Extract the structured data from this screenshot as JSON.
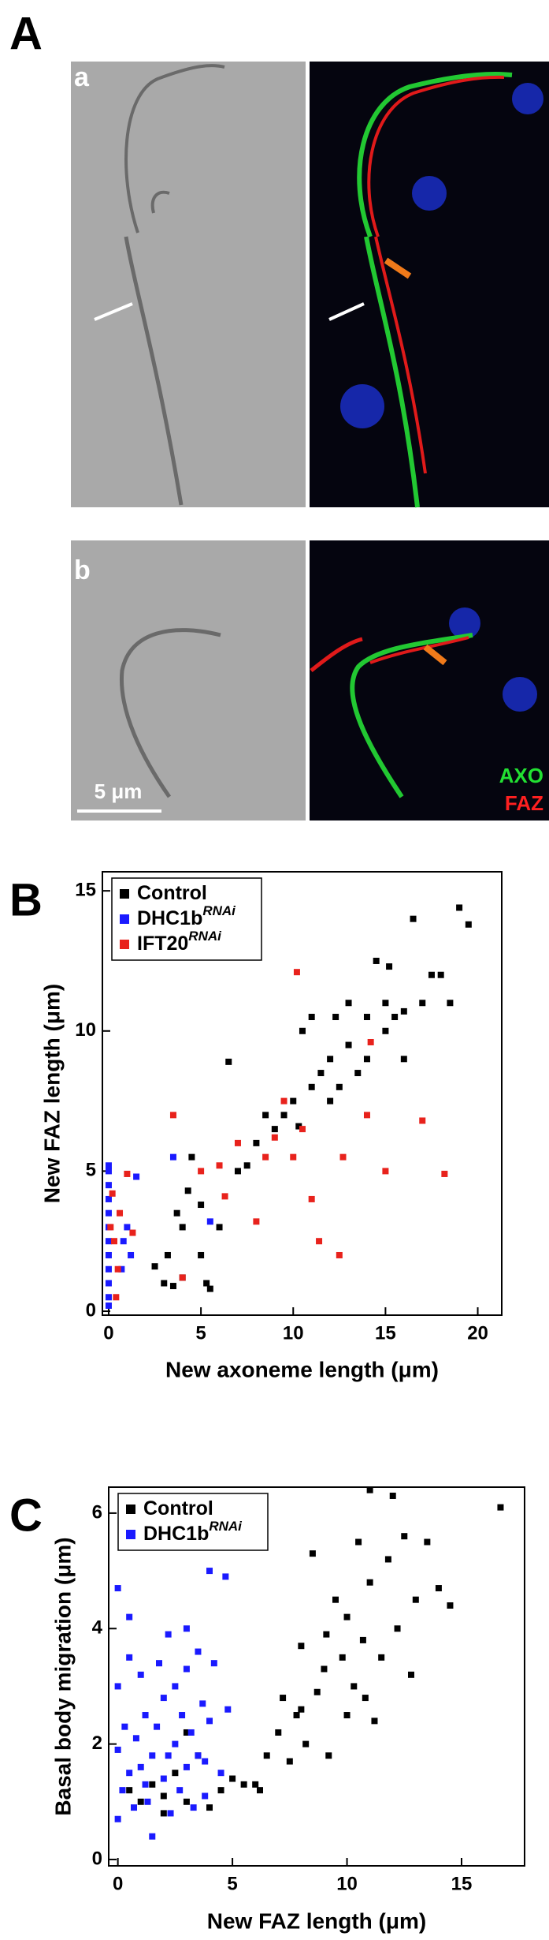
{
  "panel_labels": [
    "A",
    "B",
    "C"
  ],
  "micrographs": {
    "a": "a",
    "b": "b",
    "scale_bar": "5 μm",
    "channels": [
      "AXO",
      "FAZ"
    ]
  },
  "chart_data": [
    {
      "type": "scatter",
      "xlabel": "New axoneme length (μm)",
      "ylabel": "New FAZ length (μm)",
      "xlim": [
        -0.34,
        21.3
      ],
      "ylim": [
        -0.14,
        15.68
      ],
      "xticks": [
        0,
        5,
        10,
        15,
        20
      ],
      "yticks": [
        0,
        5,
        10,
        15
      ],
      "legend": "upper left",
      "series": [
        {
          "name": "Control",
          "color": "#000000",
          "x": [
            3,
            3.2,
            3.5,
            4,
            4,
            4.3,
            4.5,
            5,
            5,
            5.3,
            5.5,
            6,
            6.5,
            7,
            7.5,
            8,
            8.5,
            9,
            9.5,
            10,
            10.3,
            11,
            11,
            11.5,
            12,
            12,
            12.5,
            13,
            13,
            13.5,
            14,
            14,
            14.5,
            15,
            15,
            15.5,
            16,
            16,
            16.5,
            17,
            17.5,
            18,
            18.5,
            19,
            19.5,
            2.5,
            3.7,
            10.5,
            12.3,
            15.2
          ],
          "values": [
            1,
            2,
            0.9,
            1.2,
            3,
            4.3,
            5.5,
            3.8,
            2,
            1,
            0.8,
            3,
            8.9,
            5,
            5.2,
            6,
            7,
            6.5,
            7,
            7.5,
            6.6,
            10.5,
            8,
            8.5,
            9,
            7.5,
            8,
            9.5,
            11,
            8.5,
            10.5,
            9,
            12.5,
            11,
            10,
            10.5,
            10.7,
            9,
            14,
            11,
            12,
            12,
            11,
            14.4,
            13.8,
            1.6,
            3.5,
            10,
            10.5,
            12.3
          ]
        },
        {
          "name": "DHC1b",
          "superscript": "RNAi",
          "color": "#1a1aff",
          "x": [
            0,
            0,
            0,
            0,
            0,
            0,
            0,
            0,
            0,
            0,
            0,
            0,
            0.8,
            1,
            0.7,
            1.2,
            1.5,
            5.5,
            3.5
          ],
          "values": [
            0.2,
            0.5,
            1,
            1.5,
            2,
            2.5,
            3,
            3.5,
            4,
            4.5,
            5,
            5.2,
            2.5,
            3,
            1.5,
            2,
            4.8,
            3.2,
            5.5
          ]
        },
        {
          "name": "IFT20",
          "superscript": "RNAi",
          "color": "#e8221c",
          "x": [
            0.2,
            0.3,
            0.5,
            0.6,
            0.1,
            1,
            1.3,
            0.4,
            3.5,
            4,
            5,
            6,
            6.3,
            7,
            8,
            8.5,
            9,
            9.5,
            10,
            10.5,
            11,
            11.4,
            12.5,
            12.7,
            14,
            15,
            17,
            18.2,
            10.2,
            14.2
          ],
          "values": [
            4.2,
            2.5,
            1.5,
            3.5,
            3,
            4.9,
            2.8,
            0.5,
            7,
            1.2,
            5,
            5.2,
            4.1,
            6,
            3.2,
            5.5,
            6.2,
            7.5,
            5.5,
            6.5,
            4,
            2.5,
            2,
            5.5,
            7,
            5,
            6.8,
            4.9,
            12.1,
            9.6
          ]
        }
      ]
    },
    {
      "type": "scatter",
      "xlabel": "New FAZ length (μm)",
      "ylabel": "Basal body migration (μm)",
      "xlim": [
        -0.4,
        17.75
      ],
      "ylim": [
        -0.11,
        6.45
      ],
      "xticks": [
        0,
        5,
        10,
        15
      ],
      "yticks": [
        0,
        2,
        4,
        6
      ],
      "legend": "upper left",
      "series": [
        {
          "name": "Control",
          "color": "#000000",
          "x": [
            0.5,
            1,
            1.5,
            2,
            2.5,
            3,
            3.5,
            4,
            4.5,
            5,
            5.5,
            6,
            6.5,
            7,
            7.2,
            7.5,
            7.8,
            8,
            8.2,
            8.5,
            8.7,
            9,
            9.2,
            9.5,
            9.8,
            10,
            10,
            10.3,
            10.5,
            10.7,
            11,
            11,
            11.2,
            11.5,
            11.8,
            12,
            12.2,
            12.5,
            12.8,
            13,
            13.5,
            14,
            14.5,
            16.7,
            6.2,
            3,
            2,
            9.1,
            10.8,
            8
          ],
          "values": [
            1.2,
            1,
            1.3,
            1.1,
            1.5,
            1,
            1.8,
            0.9,
            1.2,
            1.4,
            1.3,
            1.3,
            1.8,
            2.2,
            2.8,
            1.7,
            2.5,
            3.7,
            2,
            5.3,
            2.9,
            3.3,
            1.8,
            4.5,
            3.5,
            2.5,
            4.2,
            3,
            5.5,
            3.8,
            6.4,
            4.8,
            2.4,
            3.5,
            5.2,
            6.3,
            4,
            5.6,
            3.2,
            4.5,
            5.5,
            4.7,
            4.4,
            6.1,
            1.2,
            2.2,
            0.8,
            3.9,
            2.8,
            2.6
          ]
        },
        {
          "name": "DHC1b",
          "superscript": "RNAi",
          "color": "#1a1aff",
          "x": [
            0,
            0,
            0,
            0,
            0.2,
            0.3,
            0.5,
            0.5,
            0.7,
            0.8,
            1,
            1,
            1.2,
            1.3,
            1.5,
            1.5,
            1.7,
            1.8,
            2,
            2,
            2.2,
            2.3,
            2.5,
            2.5,
            2.7,
            2.8,
            3,
            3,
            3,
            3.2,
            3.3,
            3.5,
            3.5,
            3.7,
            3.8,
            4,
            4,
            4.2,
            4.5,
            4.7,
            4.8,
            0.5,
            1.2,
            2.2,
            3.8
          ],
          "values": [
            0.7,
            1.9,
            3,
            4.7,
            1.2,
            2.3,
            4.2,
            1.5,
            0.9,
            2.1,
            3.2,
            1.6,
            2.5,
            1,
            1.8,
            0.4,
            2.3,
            3.4,
            1.4,
            2.8,
            3.9,
            0.8,
            2,
            3,
            1.2,
            2.5,
            4,
            1.6,
            3.3,
            2.2,
            0.9,
            3.6,
            1.8,
            2.7,
            1.1,
            5,
            2.4,
            3.4,
            1.5,
            4.9,
            2.6,
            3.5,
            1.3,
            1.8,
            1.7
          ]
        }
      ]
    }
  ]
}
